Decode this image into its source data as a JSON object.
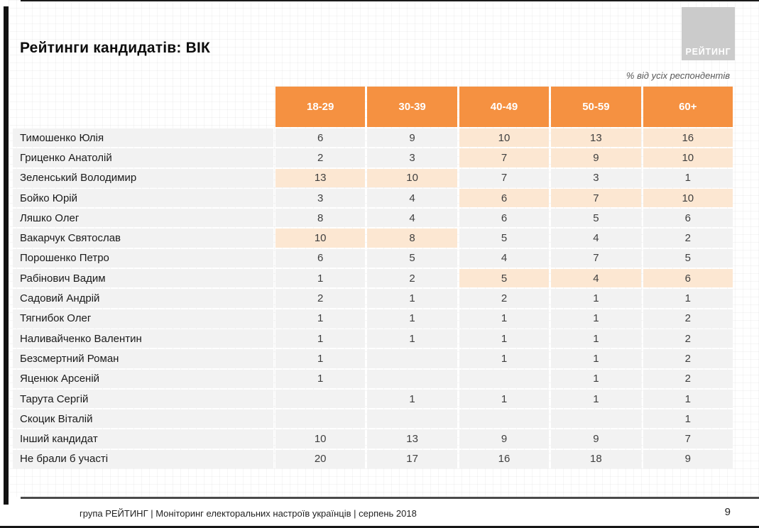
{
  "slide": {
    "title": "Рейтинги кандидатів: ВІК",
    "note": "% від усіх респондентів",
    "logo_text": "РЕЙТИНГ",
    "footer": "група РЕЙТИНГ |  Моніторинг електоральних настроїв українців | серпень  2018",
    "page_number": "9"
  },
  "colors": {
    "header_orange": "#F59141",
    "highlight_peach": "#FCE7D2",
    "row_gray": "#F2F2F2",
    "logo_gray": "#CBCBCB"
  },
  "chart_data": {
    "type": "table",
    "title": "Рейтинги кандидатів: ВІК",
    "unit": "% від усіх респондентів",
    "columns": [
      "18-29",
      "30-39",
      "40-49",
      "50-59",
      "60+"
    ],
    "rows": [
      {
        "name": "Тимошенко Юлія",
        "values": [
          "6",
          "9",
          "10",
          "13",
          "16"
        ],
        "highlight": [
          false,
          false,
          true,
          true,
          true
        ]
      },
      {
        "name": "Гриценко Анатолій",
        "values": [
          "2",
          "3",
          "7",
          "9",
          "10"
        ],
        "highlight": [
          false,
          false,
          true,
          true,
          true
        ]
      },
      {
        "name": "Зеленський Володимир",
        "values": [
          "13",
          "10",
          "7",
          "3",
          "1"
        ],
        "highlight": [
          true,
          true,
          false,
          false,
          false
        ]
      },
      {
        "name": "Бойко Юрій",
        "values": [
          "3",
          "4",
          "6",
          "7",
          "10"
        ],
        "highlight": [
          false,
          false,
          true,
          true,
          true
        ]
      },
      {
        "name": "Ляшко Олег",
        "values": [
          "8",
          "4",
          "6",
          "5",
          "6"
        ],
        "highlight": [
          false,
          false,
          false,
          false,
          false
        ]
      },
      {
        "name": "Вакарчук Святослав",
        "values": [
          "10",
          "8",
          "5",
          "4",
          "2"
        ],
        "highlight": [
          true,
          true,
          false,
          false,
          false
        ]
      },
      {
        "name": "Порошенко Петро",
        "values": [
          "6",
          "5",
          "4",
          "7",
          "5"
        ],
        "highlight": [
          false,
          false,
          false,
          false,
          false
        ]
      },
      {
        "name": "Рабінович Вадим",
        "values": [
          "1",
          "2",
          "5",
          "4",
          "6"
        ],
        "highlight": [
          false,
          false,
          true,
          true,
          true
        ]
      },
      {
        "name": "Садовий Андрій",
        "values": [
          "2",
          "1",
          "2",
          "1",
          "1"
        ],
        "highlight": [
          false,
          false,
          false,
          false,
          false
        ]
      },
      {
        "name": "Тягнибок Олег",
        "values": [
          "1",
          "1",
          "1",
          "1",
          "2"
        ],
        "highlight": [
          false,
          false,
          false,
          false,
          false
        ]
      },
      {
        "name": "Наливайченко Валентин",
        "values": [
          "1",
          "1",
          "1",
          "1",
          "2"
        ],
        "highlight": [
          false,
          false,
          false,
          false,
          false
        ]
      },
      {
        "name": "Безсмертний Роман",
        "values": [
          "1",
          "",
          "1",
          "1",
          "2"
        ],
        "highlight": [
          false,
          false,
          false,
          false,
          false
        ]
      },
      {
        "name": "Яценюк Арсеній",
        "values": [
          "1",
          "",
          "",
          "1",
          "2"
        ],
        "highlight": [
          false,
          false,
          false,
          false,
          false
        ]
      },
      {
        "name": "Тарута Сергій",
        "values": [
          "",
          "1",
          "1",
          "1",
          "1"
        ],
        "highlight": [
          false,
          false,
          false,
          false,
          false
        ]
      },
      {
        "name": "Скоцик Віталій",
        "values": [
          "",
          "",
          "",
          "",
          "1"
        ],
        "highlight": [
          false,
          false,
          false,
          false,
          false
        ]
      },
      {
        "name": "Інший кандидат",
        "values": [
          "10",
          "13",
          "9",
          "9",
          "7"
        ],
        "highlight": [
          false,
          false,
          false,
          false,
          false
        ]
      },
      {
        "name": "Не брали б участі",
        "values": [
          "20",
          "17",
          "16",
          "18",
          "9"
        ],
        "highlight": [
          false,
          false,
          false,
          false,
          false
        ]
      }
    ]
  }
}
